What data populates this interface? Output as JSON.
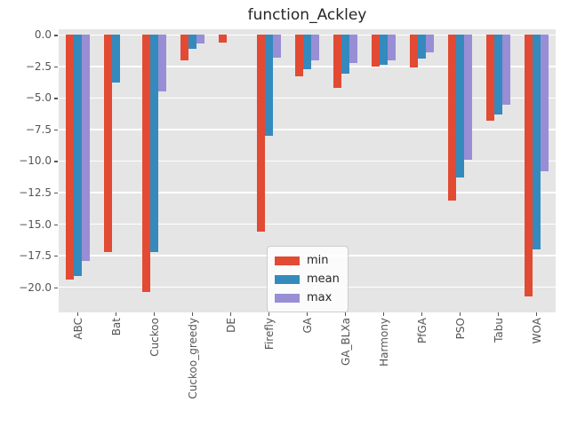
{
  "theme": {
    "figure_bg": "#FFFFFF",
    "plot_bg": "#E5E5E5",
    "grid_color": "#FFFFFF",
    "tick_color": "#555555",
    "tick_label_color": "#555555",
    "title_color": "#262626",
    "legend_bg": "#FFFFFF",
    "legend_border": "#CCCCCC",
    "series_colors": {
      "min": "#E24A33",
      "mean": "#348ABD",
      "max": "#988ED5"
    }
  },
  "chart_data": {
    "type": "bar",
    "title": "function_Ackley",
    "xlabel": "",
    "ylabel": "",
    "grid": true,
    "legend_position": "lower center inside",
    "categories": [
      "ABC",
      "Bat",
      "Cuckoo",
      "Cuckoo_greedy",
      "DE",
      "Firefly",
      "GA",
      "GA_BLXa",
      "Harmony",
      "PfGA",
      "PSO",
      "Tabu",
      "WOA"
    ],
    "series": [
      {
        "name": "min",
        "color": "#E24A33",
        "values": [
          -19.4,
          -17.2,
          -20.4,
          -2.0,
          -0.6,
          -15.6,
          -3.3,
          -4.2,
          -2.5,
          -2.6,
          -13.1,
          -6.8,
          -20.7
        ]
      },
      {
        "name": "mean",
        "color": "#348ABD",
        "values": [
          -19.1,
          -3.8,
          -17.2,
          -1.1,
          0,
          -8.0,
          -2.7,
          -3.1,
          -2.4,
          -1.9,
          -11.3,
          -6.3,
          -17.0
        ]
      },
      {
        "name": "max",
        "color": "#988ED5",
        "values": [
          -17.9,
          0,
          -4.5,
          -0.7,
          0,
          -1.8,
          -2.0,
          -2.2,
          -2.0,
          -1.4,
          -9.9,
          -5.5,
          -10.8
        ]
      }
    ],
    "ylim": [
      -22.0,
      0.45
    ],
    "yticks": [
      0.0,
      -2.5,
      -5.0,
      -7.5,
      -10.0,
      -12.5,
      -15.0,
      -17.5,
      -20.0
    ],
    "ytick_labels": [
      "0.0",
      "−2.5",
      "−5.0",
      "−7.5",
      "−10.0",
      "−12.5",
      "−15.0",
      "−17.5",
      "−20.0"
    ]
  }
}
